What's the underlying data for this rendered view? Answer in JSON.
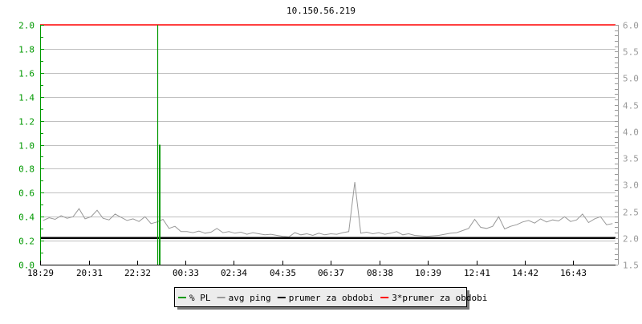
{
  "chart_data": {
    "type": "line",
    "title": "10.150.56.219",
    "x_ticks": [
      "18:29",
      "20:31",
      "22:32",
      "00:33",
      "02:34",
      "04:35",
      "06:37",
      "08:38",
      "10:39",
      "12:41",
      "14:42",
      "16:43"
    ],
    "x_range": [
      "18:29",
      "18:29"
    ],
    "y_left": {
      "range": [
        0,
        2.0
      ],
      "ticks": [
        "0.0",
        "0.2",
        "0.4",
        "0.6",
        "0.8",
        "1.0",
        "1.2",
        "1.4",
        "1.6",
        "1.8",
        "2.0"
      ],
      "color": "#009900"
    },
    "y_right": {
      "range": [
        1.5,
        6.0
      ],
      "ticks": [
        "1.5",
        "2.0",
        "2.5",
        "3.0",
        "3.5",
        "4.0",
        "4.5",
        "5.0",
        "5.5",
        "6.0"
      ],
      "color": "#999999"
    },
    "grid": true,
    "legend_position": "bottom",
    "series": [
      {
        "name": "% PL",
        "axis": "left",
        "color": "#009900",
        "points": [
          {
            "time": "23:22",
            "value": 2.0
          },
          {
            "time": "23:24",
            "value": 1.0
          }
        ]
      },
      {
        "name": "avg ping",
        "axis": "right",
        "color": "#999999",
        "interval_minutes": 15,
        "values": [
          2.33,
          2.38,
          2.35,
          2.42,
          2.37,
          2.4,
          2.55,
          2.36,
          2.4,
          2.52,
          2.37,
          2.34,
          2.45,
          2.39,
          2.33,
          2.36,
          2.31,
          2.4,
          2.27,
          2.3,
          2.35,
          2.18,
          2.22,
          2.12,
          2.12,
          2.1,
          2.13,
          2.09,
          2.11,
          2.18,
          2.1,
          2.12,
          2.09,
          2.11,
          2.07,
          2.1,
          2.08,
          2.06,
          2.07,
          2.05,
          2.03,
          2.02,
          2.1,
          2.06,
          2.08,
          2.05,
          2.09,
          2.06,
          2.08,
          2.07,
          2.1,
          2.12,
          3.05,
          2.09,
          2.11,
          2.08,
          2.1,
          2.07,
          2.09,
          2.12,
          2.06,
          2.08,
          2.05,
          2.04,
          2.03,
          2.04,
          2.05,
          2.07,
          2.09,
          2.1,
          2.14,
          2.18,
          2.35,
          2.2,
          2.18,
          2.22,
          2.4,
          2.17,
          2.22,
          2.25,
          2.3,
          2.33,
          2.28,
          2.36,
          2.3,
          2.34,
          2.32,
          2.4,
          2.31,
          2.34,
          2.45,
          2.29,
          2.36,
          2.4,
          2.25,
          2.27
        ]
      },
      {
        "name": "prumer za obdobi",
        "axis": "right",
        "color": "#000000",
        "value": 2.0
      },
      {
        "name": "3*prumer za obdobi",
        "axis": "right",
        "color": "#ff0000",
        "value": 6.0
      }
    ]
  }
}
